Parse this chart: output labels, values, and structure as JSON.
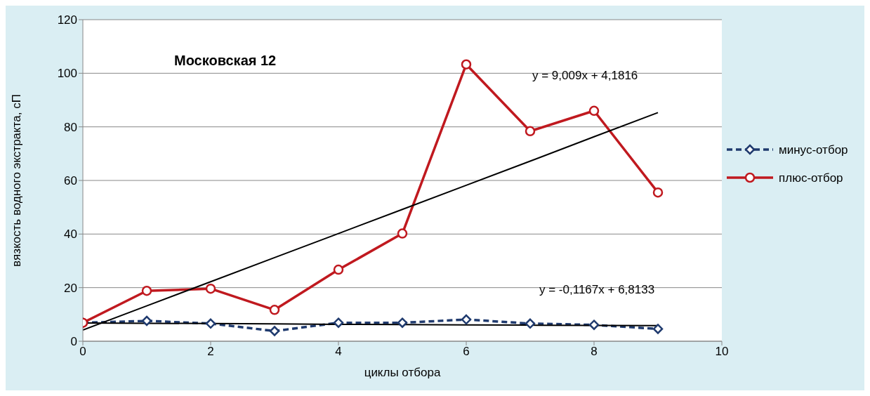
{
  "chart_data": {
    "type": "line",
    "title": "Московская 12",
    "xlabel": "циклы отбора",
    "ylabel": "вязкость водного экстракта, сП",
    "x": [
      0,
      1,
      2,
      3,
      4,
      5,
      6,
      7,
      8,
      9
    ],
    "series": [
      {
        "name": "минус-отбор",
        "color": "#1f3a6e",
        "marker": "diamond",
        "line_style": "dashed",
        "values": [
          6.9,
          7.6,
          6.6,
          3.8,
          6.9,
          6.9,
          8.1,
          6.6,
          6.1,
          4.6
        ]
      },
      {
        "name": "плюс-отбор",
        "color": "#c0191f",
        "marker": "circle",
        "line_style": "solid",
        "values": [
          6.9,
          18.8,
          19.6,
          11.7,
          26.7,
          40.2,
          103.3,
          78.4,
          86,
          55.5
        ]
      },
      {
        "type": "line",
        "color": "#000000",
        "marker": "none",
        "line_style": "solid",
        "values": [
          4.2,
          13.2,
          22.2,
          31.2,
          40.2,
          49.2,
          58.2,
          67.2,
          76.3,
          85.3
        ]
      },
      {
        "type": "line",
        "color": "#000000",
        "marker": "none",
        "line_style": "solid",
        "values": [
          6.8,
          6.7,
          6.6,
          6.5,
          6.3,
          6.2,
          6.1,
          6.0,
          5.9,
          5.8
        ]
      }
    ],
    "annotations": [
      "y = 9,009x + 4,1816",
      "y = -0,1167x + 6,8133"
    ],
    "xlim": [
      0,
      10
    ],
    "xticks": [
      0,
      2,
      4,
      6,
      8,
      10
    ],
    "ylim": [
      0,
      120
    ],
    "yticks": [
      0,
      20,
      40,
      60,
      80,
      100,
      120
    ],
    "grid": "y",
    "legend": "right"
  }
}
